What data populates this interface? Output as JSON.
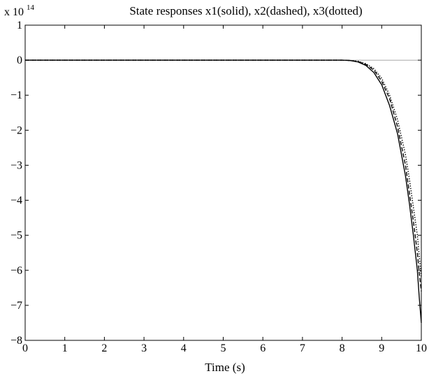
{
  "chart_data": {
    "type": "line",
    "title": "State responses x1(solid), x2(dashed), x3(dotted)",
    "xlabel": "Time (s)",
    "ylabel": "",
    "y_multiplier": {
      "base": "x 10",
      "exponent": "14"
    },
    "xlim": [
      0,
      10
    ],
    "ylim": [
      -8,
      1
    ],
    "xticks": [
      "0",
      "1",
      "2",
      "3",
      "4",
      "5",
      "6",
      "7",
      "8",
      "9",
      "10"
    ],
    "yticks": [
      "1",
      "0",
      "−1",
      "−2",
      "−3",
      "−4",
      "−5",
      "−6",
      "−7",
      "−8"
    ],
    "grid": false,
    "series": [
      {
        "name": "x1",
        "style": "solid",
        "x": [
          0,
          7,
          8,
          8.2,
          8.4,
          8.6,
          8.8,
          9.0,
          9.2,
          9.4,
          9.6,
          9.7,
          9.8,
          9.9,
          9.95,
          10.0
        ],
        "y": [
          0,
          0,
          0,
          -0.01,
          -0.05,
          -0.15,
          -0.35,
          -0.7,
          -1.3,
          -2.1,
          -3.3,
          -4.1,
          -5.0,
          -6.0,
          -6.8,
          -7.5
        ]
      },
      {
        "name": "x2",
        "style": "dashed",
        "x": [
          0,
          7,
          8,
          8.2,
          8.4,
          8.6,
          8.8,
          9.0,
          9.2,
          9.4,
          9.6,
          9.7,
          9.8,
          9.9,
          9.95,
          10.0
        ],
        "y": [
          0,
          0,
          0,
          -0.01,
          -0.04,
          -0.12,
          -0.28,
          -0.6,
          -1.1,
          -1.9,
          -3.0,
          -3.8,
          -4.6,
          -5.5,
          -6.1,
          -6.6
        ]
      },
      {
        "name": "x3",
        "style": "dotted",
        "x": [
          0,
          7,
          8,
          8.2,
          8.4,
          8.6,
          8.8,
          9.0,
          9.2,
          9.4,
          9.6,
          9.7,
          9.8,
          9.9,
          9.95,
          10.0
        ],
        "y": [
          0,
          0,
          0,
          -0.01,
          -0.03,
          -0.1,
          -0.24,
          -0.52,
          -1.0,
          -1.7,
          -2.7,
          -3.4,
          -4.2,
          -5.0,
          -5.6,
          -6.2
        ]
      }
    ],
    "colors": {
      "line": "#000000",
      "axes": "#000000",
      "background": "#ffffff"
    }
  }
}
